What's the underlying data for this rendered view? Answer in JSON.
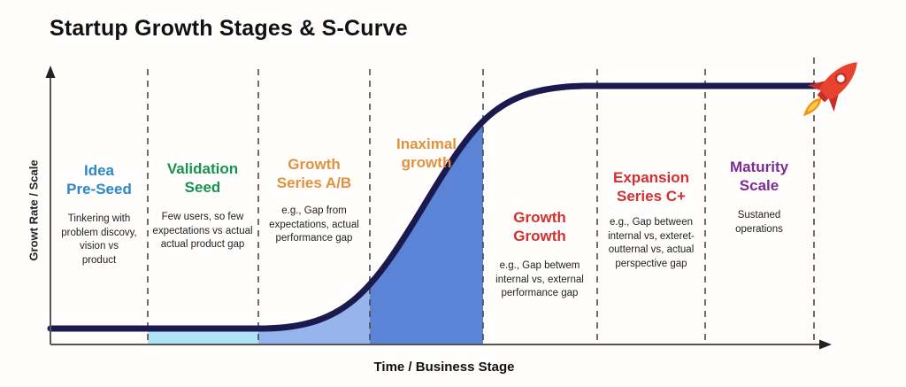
{
  "title": "Startup Growth Stages & S-Curve",
  "axes": {
    "y_label": "Growt Rate / Scale",
    "x_label": "Time / Business Stage"
  },
  "stages": [
    {
      "title": "Idea\nPre-Seed",
      "color": "#2b87c8",
      "description": "Tinkering with\nproblem discovy,\nvision vs\nproduct"
    },
    {
      "title": "Validation\nSeed",
      "color": "#17934f",
      "description": "Few users, so few\nexpectations vs actual\nactual product gap"
    },
    {
      "title": "Growth\nSeries A/B",
      "color": "#e2913d",
      "description": "e.g., Gap from\nexpectations, actual\nperformance gap"
    },
    {
      "title": "Inaximal\ngrowth",
      "color": "#e2913d",
      "description": ""
    },
    {
      "title": "Growth\nGrowth",
      "color": "#d32f2f",
      "description": "e.g., Gap betwem\ninternal vs, external\nperformance gap"
    },
    {
      "title": "Expansion\nSeries C+",
      "color": "#d32f2f",
      "description": "e.g., Gap between\ninternal vs, exteret-\noutternal vs, actual\nperspective gap"
    },
    {
      "title": "Maturity\nScale",
      "color": "#7b2d93",
      "description": "Sustaned\noperations"
    }
  ],
  "icons": {
    "rocket": "rocket-icon"
  },
  "colors": {
    "curve": "#1a1a4f",
    "fill_seed": "#aee4f5",
    "fill_series_ab": "#95b5ec",
    "fill_inaximal": "#5b84d6",
    "axis": "#555555",
    "axis_arrow": "#222222",
    "dashed_line": "#4a4a4a",
    "rocket_body": "#e8432f",
    "rocket_dark": "#c62f26",
    "rocket_flame": "#f6921e",
    "rocket_flame_inner": "#ffd34d"
  }
}
